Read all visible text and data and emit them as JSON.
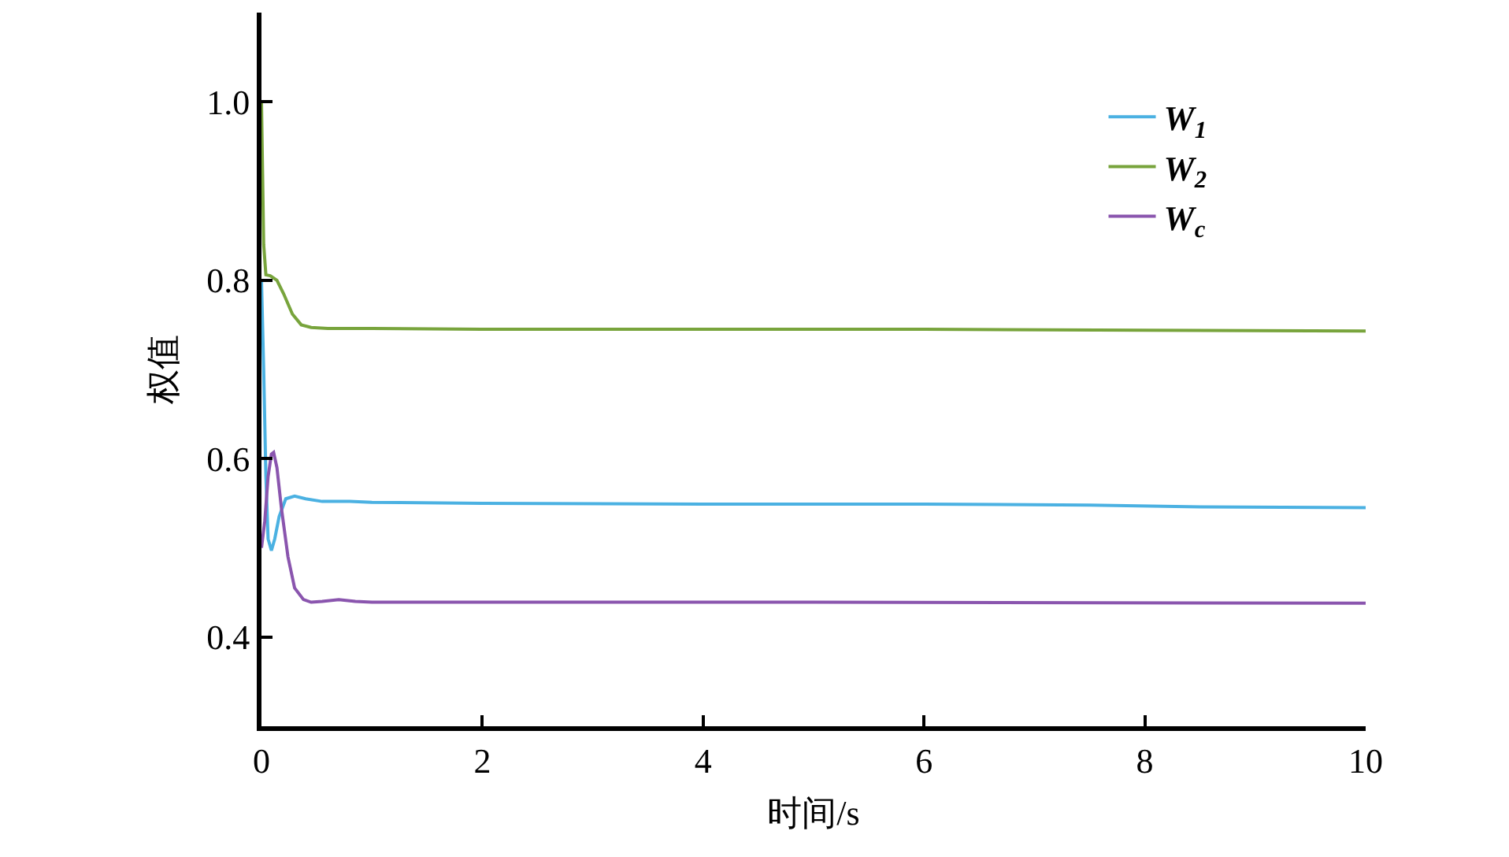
{
  "chart_data": {
    "type": "line",
    "xlabel": "时间/s",
    "ylabel": "权值",
    "xlim": [
      0,
      10
    ],
    "xticks": [
      0,
      2,
      4,
      6,
      8,
      10
    ],
    "ylim": [
      0.3,
      1.1
    ],
    "yticks": [
      0.4,
      0.6,
      0.8,
      {
        "value": 1.0,
        "label": "1.0"
      }
    ],
    "grid": false,
    "legend": "top right",
    "marker": "none",
    "line_style": "solid",
    "series": [
      {
        "name": "W$_{1}$",
        "color": "#4bb1e2",
        "x": [
          0,
          0.02,
          0.04,
          0.06,
          0.09,
          0.12,
          0.16,
          0.22,
          0.3,
          0.4,
          0.55,
          0.8,
          1,
          2,
          4,
          6,
          7.5,
          8.5,
          10
        ],
        "values": [
          0.8,
          0.7,
          0.58,
          0.51,
          0.497,
          0.51,
          0.535,
          0.555,
          0.558,
          0.555,
          0.552,
          0.552,
          0.551,
          0.55,
          0.549,
          0.549,
          0.548,
          0.546,
          0.545
        ]
      },
      {
        "name": "W$_{2}$",
        "color": "#78a43c",
        "x": [
          0,
          0.01,
          0.02,
          0.04,
          0.08,
          0.14,
          0.2,
          0.28,
          0.36,
          0.45,
          0.6,
          1,
          2,
          4,
          6,
          8,
          10
        ],
        "values": [
          1.0,
          0.92,
          0.84,
          0.806,
          0.805,
          0.8,
          0.785,
          0.762,
          0.75,
          0.747,
          0.746,
          0.746,
          0.745,
          0.745,
          0.745,
          0.744,
          0.743
        ]
      },
      {
        "name": "W$_{c}$",
        "color": "#8a55ae",
        "x": [
          0,
          0.03,
          0.06,
          0.09,
          0.11,
          0.14,
          0.18,
          0.24,
          0.3,
          0.38,
          0.45,
          0.55,
          0.7,
          0.85,
          1,
          2,
          5,
          10
        ],
        "values": [
          0.5,
          0.53,
          0.58,
          0.605,
          0.607,
          0.59,
          0.545,
          0.49,
          0.455,
          0.442,
          0.439,
          0.44,
          0.442,
          0.44,
          0.439,
          0.439,
          0.439,
          0.438
        ]
      }
    ]
  }
}
